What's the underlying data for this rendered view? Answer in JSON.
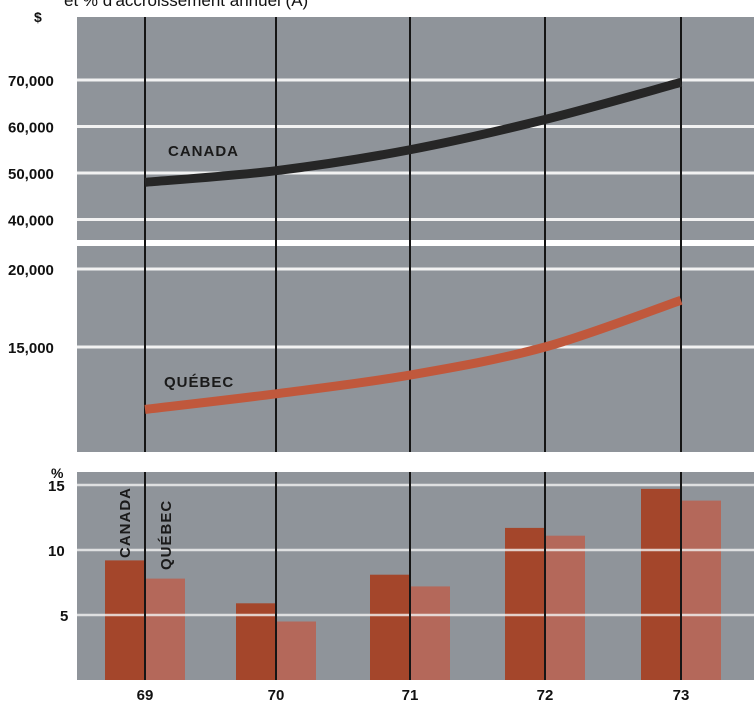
{
  "caption_partial": "et % d'accroissement annuel (A)",
  "chart_data": [
    {
      "type": "line",
      "unit": "$",
      "categories": [
        "69",
        "70",
        "71",
        "72",
        "73"
      ],
      "y_ticks_top": [
        "70,000",
        "60,000",
        "50,000",
        "40,000"
      ],
      "y_ticks_bottom": [
        "20,000",
        "15,000"
      ],
      "series": [
        {
          "name": "CANADA",
          "values": [
            48000,
            50500,
            55000,
            61500,
            69500
          ],
          "color": "#262626"
        },
        {
          "name": "QUÉBEC",
          "values": [
            11000,
            12000,
            13200,
            15000,
            18000
          ],
          "color": "#c0583c"
        }
      ],
      "axis_break": [
        20000,
        40000
      ],
      "grid": true
    },
    {
      "type": "bar",
      "unit": "%",
      "categories": [
        "69",
        "70",
        "71",
        "72",
        "73"
      ],
      "y_ticks": [
        "15",
        "10",
        "5"
      ],
      "ylim": [
        0,
        16
      ],
      "series": [
        {
          "name": "CANADA",
          "values": [
            9.2,
            5.9,
            8.1,
            11.7,
            14.7
          ],
          "color": "#a4462b"
        },
        {
          "name": "QUÉBEC",
          "values": [
            7.8,
            4.5,
            7.2,
            11.1,
            13.8
          ],
          "color": "#b4685a"
        }
      ],
      "grid": true
    }
  ]
}
